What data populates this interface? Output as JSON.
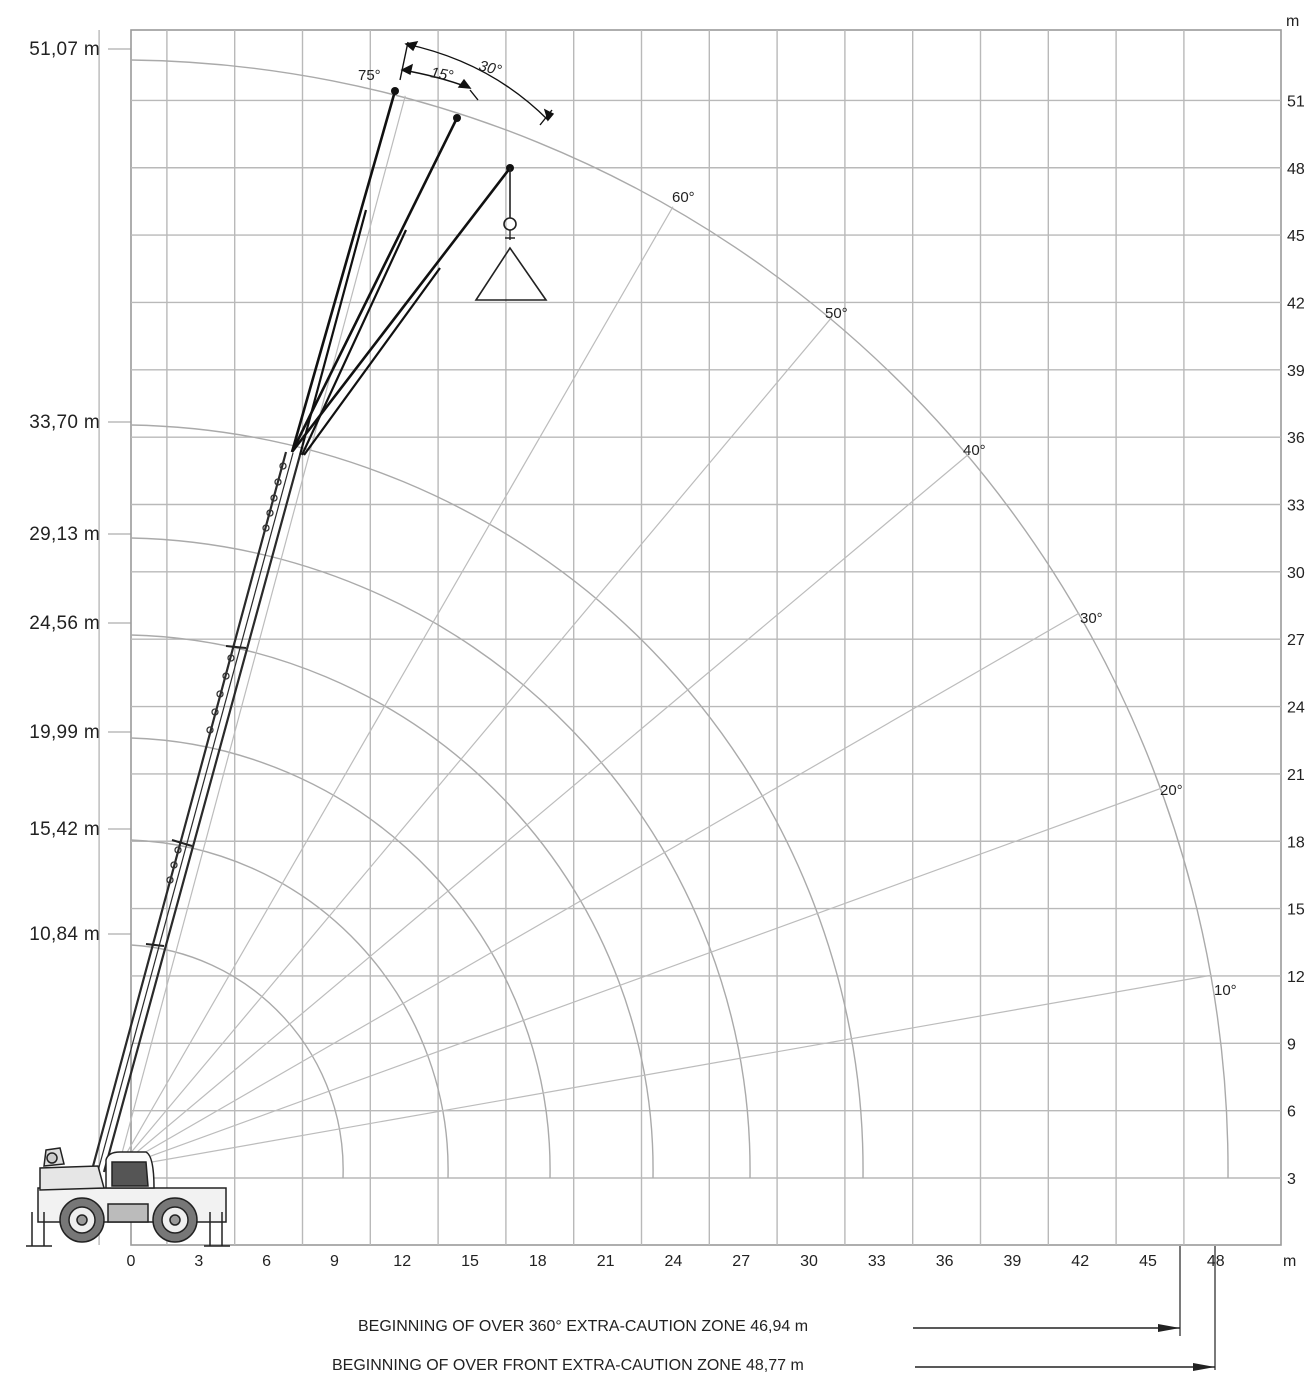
{
  "chart_data": {
    "type": "diagram",
    "x_unit": "m",
    "y_unit": "m",
    "x_ticks": [
      0,
      3,
      6,
      9,
      12,
      15,
      18,
      21,
      24,
      27,
      30,
      33,
      36,
      39,
      42,
      45,
      48
    ],
    "y_ticks": [
      3,
      6,
      9,
      12,
      15,
      18,
      21,
      24,
      27,
      30,
      33,
      36,
      39,
      42,
      45,
      48,
      51
    ],
    "boom_lengths": [
      "10,84 m",
      "15,42 m",
      "19,99 m",
      "24,56 m",
      "29,13 m",
      "33,70 m",
      "51,07 m"
    ],
    "radius_arcs_m": [
      10.84,
      15.42,
      19.99,
      24.56,
      29.13,
      33.7,
      51.07
    ],
    "boom_angles": [
      "10°",
      "20°",
      "30°",
      "40°",
      "50°",
      "60°",
      "75°"
    ],
    "jib_offsets": [
      "15°",
      "30°"
    ],
    "notes": [
      {
        "text": "BEGINNING OF OVER 360° EXTRA-CAUTION ZONE 46,94 m",
        "value": 46.94
      },
      {
        "text": "BEGINNING OF OVER FRONT EXTRA-CAUTION ZONE 48,77 m",
        "value": 48.77
      }
    ]
  }
}
